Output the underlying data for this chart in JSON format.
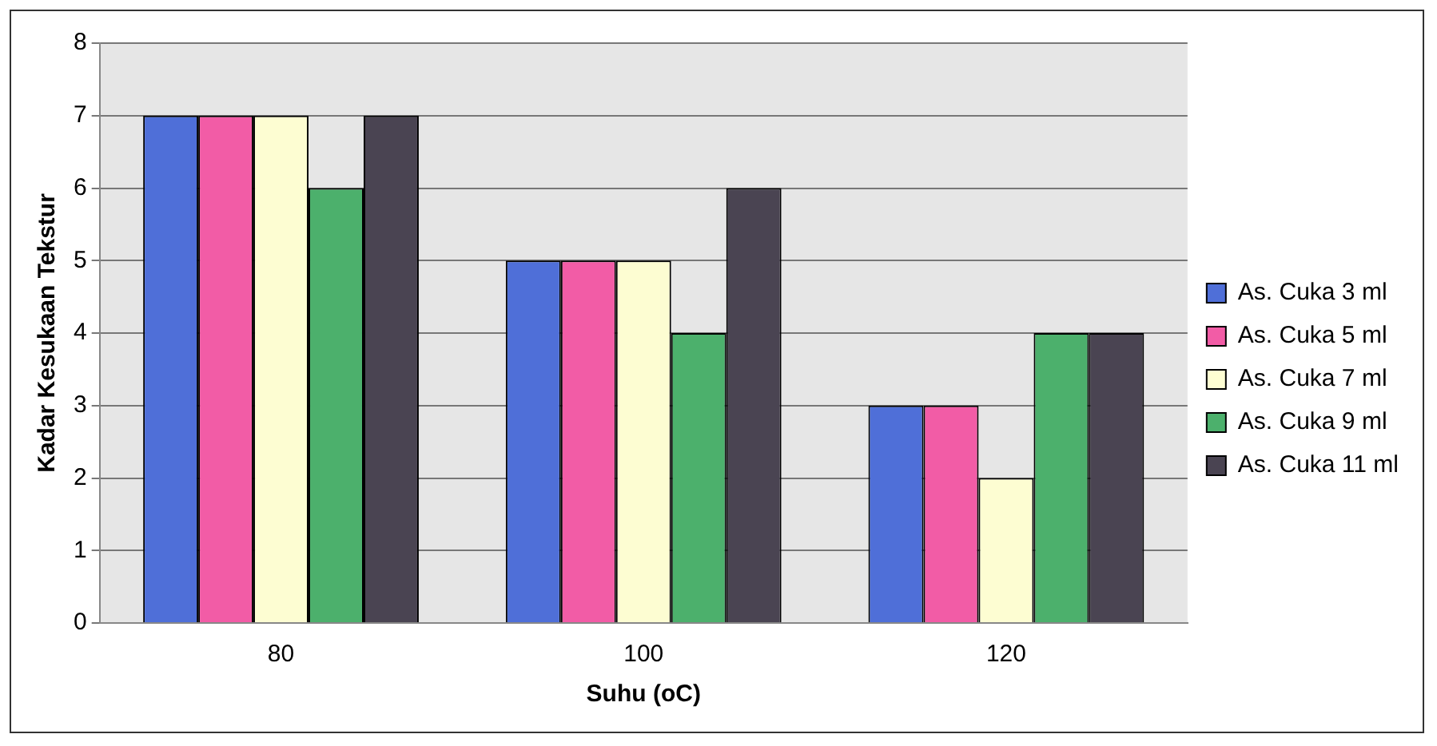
{
  "chart_data": {
    "type": "bar",
    "xlabel": "Suhu (oC)",
    "ylabel": "Kadar Kesukaan Tekstur",
    "categories": [
      "80",
      "100",
      "120"
    ],
    "series": [
      {
        "name": "As. Cuka 3 ml",
        "color": "#4f6fd8",
        "values": [
          7,
          5,
          3
        ]
      },
      {
        "name": "As. Cuka 5 ml",
        "color": "#f25ca6",
        "values": [
          7,
          5,
          3
        ]
      },
      {
        "name": "As. Cuka 7 ml",
        "color": "#fdfdd2",
        "values": [
          7,
          5,
          2
        ]
      },
      {
        "name": "As. Cuka 9 ml",
        "color": "#4cb06c",
        "values": [
          6,
          4,
          4
        ]
      },
      {
        "name": "As. Cuka 11 ml",
        "color": "#4a4452",
        "values": [
          7,
          6,
          4
        ]
      }
    ],
    "ylim": [
      0,
      8
    ],
    "yticks": [
      0,
      1,
      2,
      3,
      4,
      5,
      6,
      7,
      8
    ],
    "grid": "y",
    "legend": "right"
  }
}
